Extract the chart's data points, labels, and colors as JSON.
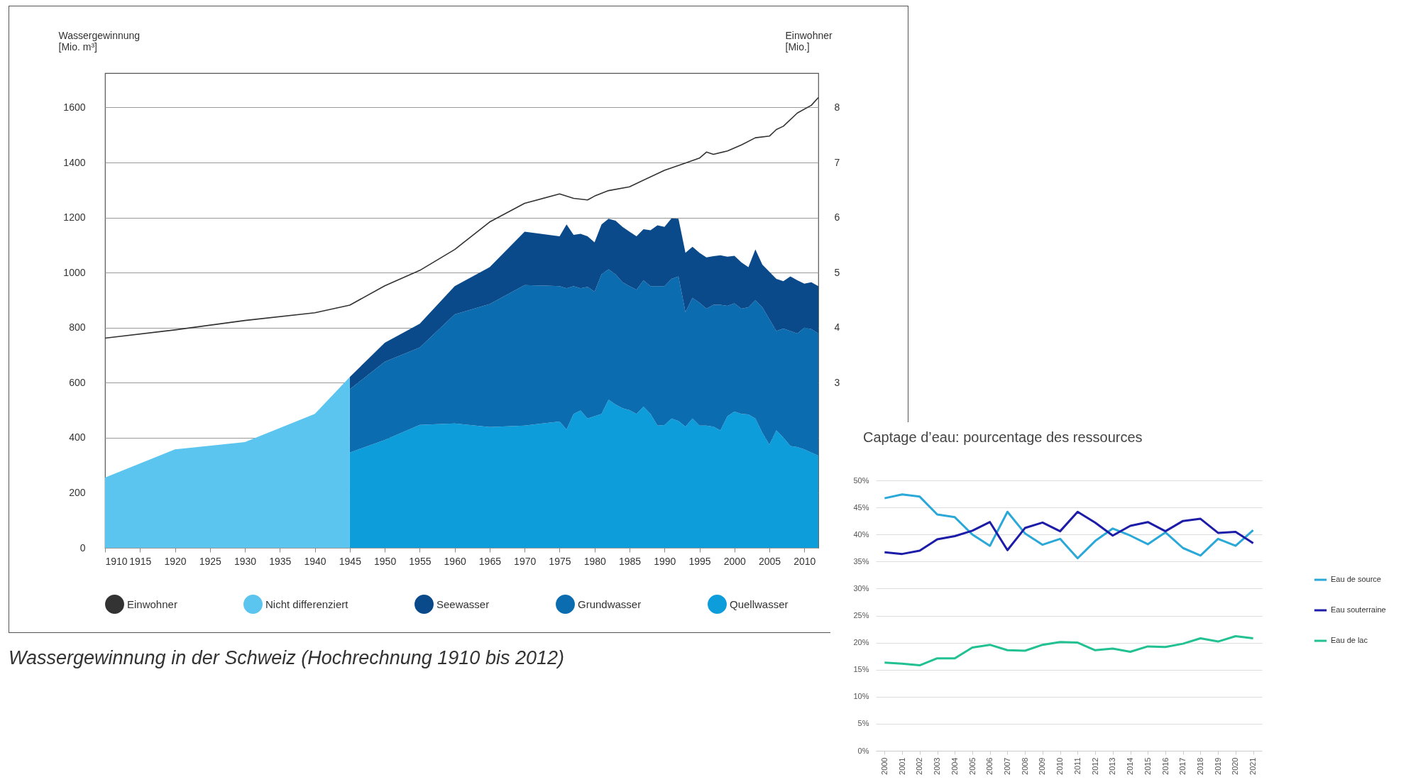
{
  "chart_data": [
    {
      "type": "area",
      "stacked": true,
      "ylabel": "Wassergewinnung [Mio. m³]",
      "y2label": "Einwohner [Mio.]",
      "x": [
        1910,
        1920,
        1930,
        1940,
        1945,
        1945,
        1950,
        1955,
        1960,
        1965,
        1970,
        1975,
        1976,
        1977,
        1978,
        1979,
        1980,
        1981,
        1982,
        1983,
        1984,
        1985,
        1986,
        1987,
        1988,
        1989,
        1990,
        1991,
        1992,
        1993,
        1994,
        1995,
        1996,
        1997,
        1998,
        1999,
        2000,
        2001,
        2002,
        2003,
        2004,
        2005,
        2006,
        2007,
        2008,
        2009,
        2010,
        2011,
        2012
      ],
      "series": [
        {
          "name": "Quellwasser",
          "color": "#0d9ddb",
          "values": [
            null,
            null,
            null,
            null,
            null,
            346,
            392,
            447,
            452,
            439,
            444,
            459,
            430,
            487,
            499,
            470,
            478,
            487,
            538,
            521,
            507,
            500,
            487,
            513,
            487,
            444,
            446,
            470,
            461,
            440,
            470,
            444,
            444,
            440,
            427,
            478,
            495,
            487,
            485,
            470,
            418,
            375,
            427,
            401,
            370,
            366,
            358,
            346,
            335
          ]
        },
        {
          "name": "Grundwasser",
          "color": "#0b6cb0",
          "values": [
            null,
            null,
            null,
            null,
            null,
            230,
            284,
            281,
            396,
            447,
            511,
            492,
            513,
            464,
            444,
            478,
            453,
            507,
            474,
            473,
            458,
            451,
            451,
            459,
            464,
            507,
            505,
            507,
            525,
            417,
            438,
            447,
            425,
            443,
            456,
            401,
            393,
            382,
            389,
            430,
            456,
            456,
            361,
            396,
            418,
            413,
            442,
            449,
            444
          ]
        },
        {
          "name": "Seewasser",
          "color": "#0a4a8a",
          "values": [
            null,
            null,
            null,
            null,
            null,
            45,
            69,
            86,
            103,
            134,
            194,
            181,
            232,
            186,
            198,
            184,
            179,
            181,
            184,
            195,
            201,
            198,
            194,
            186,
            203,
            221,
            215,
            220,
            210,
            215,
            186,
            181,
            186,
            177,
            180,
            179,
            173,
            168,
            146,
            184,
            155,
            172,
            189,
            172,
            198,
            193,
            160,
            170,
            172
          ]
        },
        {
          "name": "Nicht differenziert",
          "color": "#5bc4ef",
          "values": [
            255,
            358,
            384,
            487,
            621,
            null,
            null,
            null,
            null,
            null,
            null,
            null,
            null,
            null,
            null,
            null,
            null,
            null,
            null,
            null,
            null,
            null,
            null,
            null,
            null,
            null,
            null,
            null,
            null,
            null,
            null,
            null,
            null,
            null,
            null,
            null,
            null,
            null,
            null,
            null,
            null,
            null,
            null,
            null,
            null,
            null,
            null,
            null,
            null
          ]
        },
        {
          "name": "Einwohner",
          "type": "line",
          "axis": "y2",
          "color": "#333333",
          "x": [
            1910,
            1920,
            1930,
            1940,
            1945,
            1950,
            1955,
            1960,
            1965,
            1970,
            1975,
            1977,
            1979,
            1980,
            1982,
            1985,
            1990,
            1993,
            1995,
            1996,
            1997,
            1999,
            2001,
            2003,
            2005,
            2006,
            2007,
            2009,
            2011,
            2012
          ],
          "values": [
            3.81,
            3.96,
            4.13,
            4.27,
            4.41,
            4.76,
            5.04,
            5.42,
            5.92,
            6.26,
            6.43,
            6.35,
            6.32,
            6.39,
            6.49,
            6.56,
            6.86,
            6.99,
            7.08,
            7.19,
            7.15,
            7.21,
            7.32,
            7.45,
            7.48,
            7.6,
            7.66,
            7.9,
            8.04,
            8.18
          ]
        }
      ],
      "xlim": [
        1910,
        2012
      ],
      "xticks": [
        1910,
        1915,
        1920,
        1925,
        1930,
        1935,
        1940,
        1945,
        1950,
        1955,
        1960,
        1965,
        1970,
        1975,
        1980,
        1985,
        1990,
        1995,
        2000,
        2005,
        2010
      ],
      "ylim": [
        0,
        1725
      ],
      "yticks": [
        0,
        200,
        400,
        600,
        800,
        1000,
        1200,
        1400,
        1600
      ],
      "y2lim": [
        0,
        8.625
      ],
      "y2ticks": [
        3,
        4,
        5,
        6,
        7,
        8
      ],
      "grid": "y",
      "legend": "bottom",
      "annotations": [
        "Wassergewinnung in der Schweiz (Hochrechnung 1910 bis 2012)"
      ]
    },
    {
      "type": "line",
      "title": "Captage d’eau: pourcentage des ressources",
      "categories": [
        "2000",
        "2001",
        "2002",
        "2003",
        "2004",
        "2005",
        "2006",
        "2007",
        "2008",
        "2009",
        "2010",
        "2011",
        "2012",
        "2013",
        "2014",
        "2015",
        "2016",
        "2017",
        "2018",
        "2019",
        "2020",
        "2021"
      ],
      "series": [
        {
          "name": "Eau de source",
          "color": "#2aa8d8",
          "values": [
            46.7,
            47.4,
            47.0,
            43.7,
            43.2,
            40.0,
            37.9,
            44.2,
            40.2,
            38.1,
            39.2,
            35.6,
            38.8,
            41.1,
            39.8,
            38.2,
            40.4,
            37.5,
            36.1,
            39.2,
            37.9,
            40.8
          ]
        },
        {
          "name": "Eau souterraine",
          "color": "#1c1ca8",
          "values": [
            36.7,
            36.4,
            37.0,
            39.1,
            39.7,
            40.7,
            42.3,
            37.1,
            41.2,
            42.2,
            40.6,
            44.2,
            42.2,
            39.8,
            41.6,
            42.3,
            40.6,
            42.5,
            42.9,
            40.3,
            40.5,
            38.4
          ]
        },
        {
          "name": "Eau de lac",
          "color": "#22c192",
          "values": [
            16.3,
            16.1,
            15.8,
            17.1,
            17.1,
            19.1,
            19.6,
            18.6,
            18.5,
            19.6,
            20.1,
            20.0,
            18.6,
            18.9,
            18.3,
            19.3,
            19.2,
            19.8,
            20.8,
            20.2,
            21.2,
            20.8
          ]
        }
      ],
      "ylim": [
        0,
        50
      ],
      "yticks": [
        {
          "value": 0,
          "label": "0%"
        },
        {
          "value": 5,
          "label": "5%"
        },
        {
          "value": 10,
          "label": "10%"
        },
        {
          "value": 15,
          "label": "15%"
        },
        {
          "value": 20,
          "label": "20%"
        },
        {
          "value": 25,
          "label": "25%"
        },
        {
          "value": 30,
          "label": "30%"
        },
        {
          "value": 35,
          "label": "35%"
        },
        {
          "value": 40,
          "label": "40%"
        },
        {
          "value": 45,
          "label": "45%"
        },
        {
          "value": 50,
          "label": "50%"
        }
      ],
      "grid": "y",
      "legend": "right"
    }
  ]
}
